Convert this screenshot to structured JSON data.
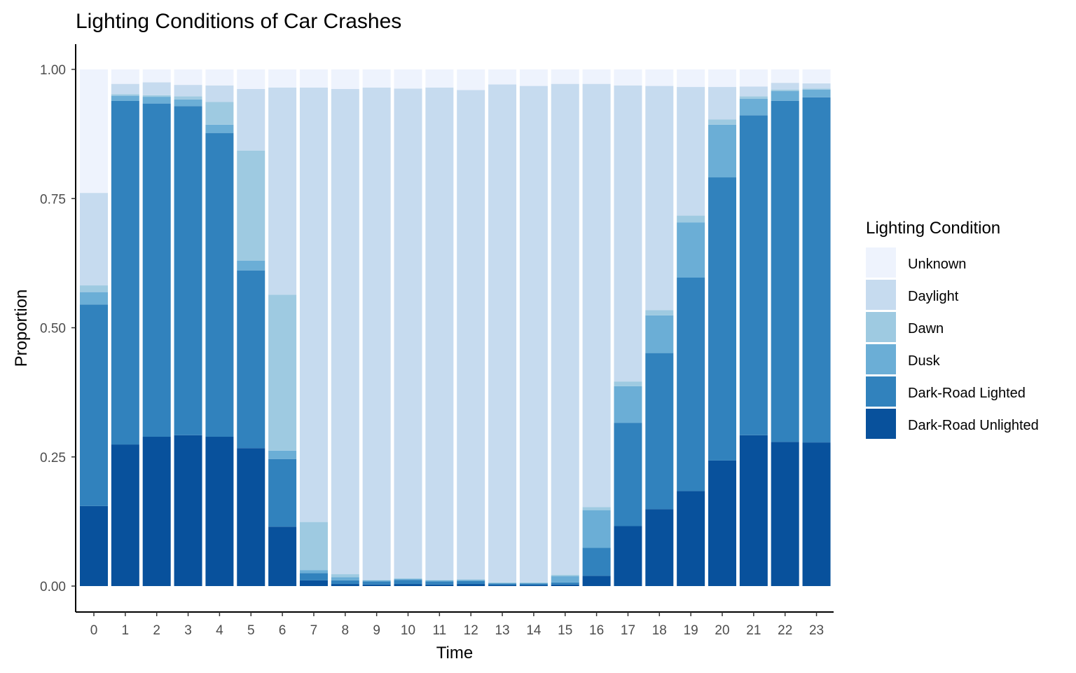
{
  "chart_data": {
    "type": "bar",
    "stacked": true,
    "title": "Lighting Conditions of Car Crashes",
    "xlabel": "Time",
    "ylabel": "Proportion",
    "ylim": [
      0,
      1
    ],
    "yticks": [
      "0.00",
      "0.25",
      "0.50",
      "0.75",
      "1.00"
    ],
    "ytick_values": [
      0,
      0.25,
      0.5,
      0.75,
      1.0
    ],
    "categories": [
      "0",
      "1",
      "2",
      "3",
      "4",
      "5",
      "6",
      "7",
      "8",
      "9",
      "10",
      "11",
      "12",
      "13",
      "14",
      "15",
      "16",
      "17",
      "18",
      "19",
      "20",
      "21",
      "22",
      "23"
    ],
    "legend": {
      "title": "Lighting Condition",
      "position": "right"
    },
    "grid": false,
    "series": [
      {
        "name": "Dark-Road Unlighted",
        "color": "#08519c",
        "values": [
          0.155,
          0.274,
          0.289,
          0.292,
          0.289,
          0.267,
          0.115,
          0.011,
          0.004,
          0.003,
          0.004,
          0.003,
          0.004,
          0.002,
          0.002,
          0.003,
          0.02,
          0.116,
          0.149,
          0.184,
          0.243,
          0.292,
          0.279,
          0.278
        ]
      },
      {
        "name": "Dark-Road Lighted",
        "color": "#3182bd",
        "values": [
          0.39,
          0.665,
          0.645,
          0.637,
          0.588,
          0.344,
          0.131,
          0.014,
          0.007,
          0.006,
          0.008,
          0.006,
          0.006,
          0.003,
          0.003,
          0.004,
          0.054,
          0.2,
          0.302,
          0.413,
          0.548,
          0.619,
          0.66,
          0.668
        ]
      },
      {
        "name": "Dusk",
        "color": "#6baed6",
        "values": [
          0.024,
          0.01,
          0.013,
          0.013,
          0.016,
          0.019,
          0.016,
          0.006,
          0.006,
          0.002,
          0.002,
          0.002,
          0.002,
          0.001,
          0.001,
          0.012,
          0.073,
          0.071,
          0.073,
          0.107,
          0.102,
          0.032,
          0.019,
          0.015
        ]
      },
      {
        "name": "Dawn",
        "color": "#9ecae1",
        "values": [
          0.013,
          0.003,
          0.003,
          0.006,
          0.044,
          0.213,
          0.302,
          0.093,
          0.006,
          0.001,
          0.001,
          0.001,
          0.001,
          0.001,
          0.001,
          0.003,
          0.006,
          0.009,
          0.01,
          0.013,
          0.01,
          0.005,
          0.003,
          0.002
        ]
      },
      {
        "name": "Daylight",
        "color": "#c6dbef",
        "values": [
          0.179,
          0.02,
          0.025,
          0.022,
          0.032,
          0.119,
          0.401,
          0.841,
          0.939,
          0.953,
          0.948,
          0.953,
          0.947,
          0.964,
          0.961,
          0.95,
          0.819,
          0.573,
          0.434,
          0.249,
          0.063,
          0.019,
          0.013,
          0.01
        ]
      },
      {
        "name": "Unknown",
        "color": "#eef3fd",
        "values": [
          0.239,
          0.028,
          0.025,
          0.03,
          0.031,
          0.038,
          0.035,
          0.035,
          0.038,
          0.035,
          0.037,
          0.035,
          0.04,
          0.029,
          0.032,
          0.028,
          0.028,
          0.031,
          0.032,
          0.034,
          0.034,
          0.033,
          0.026,
          0.027
        ]
      }
    ]
  }
}
